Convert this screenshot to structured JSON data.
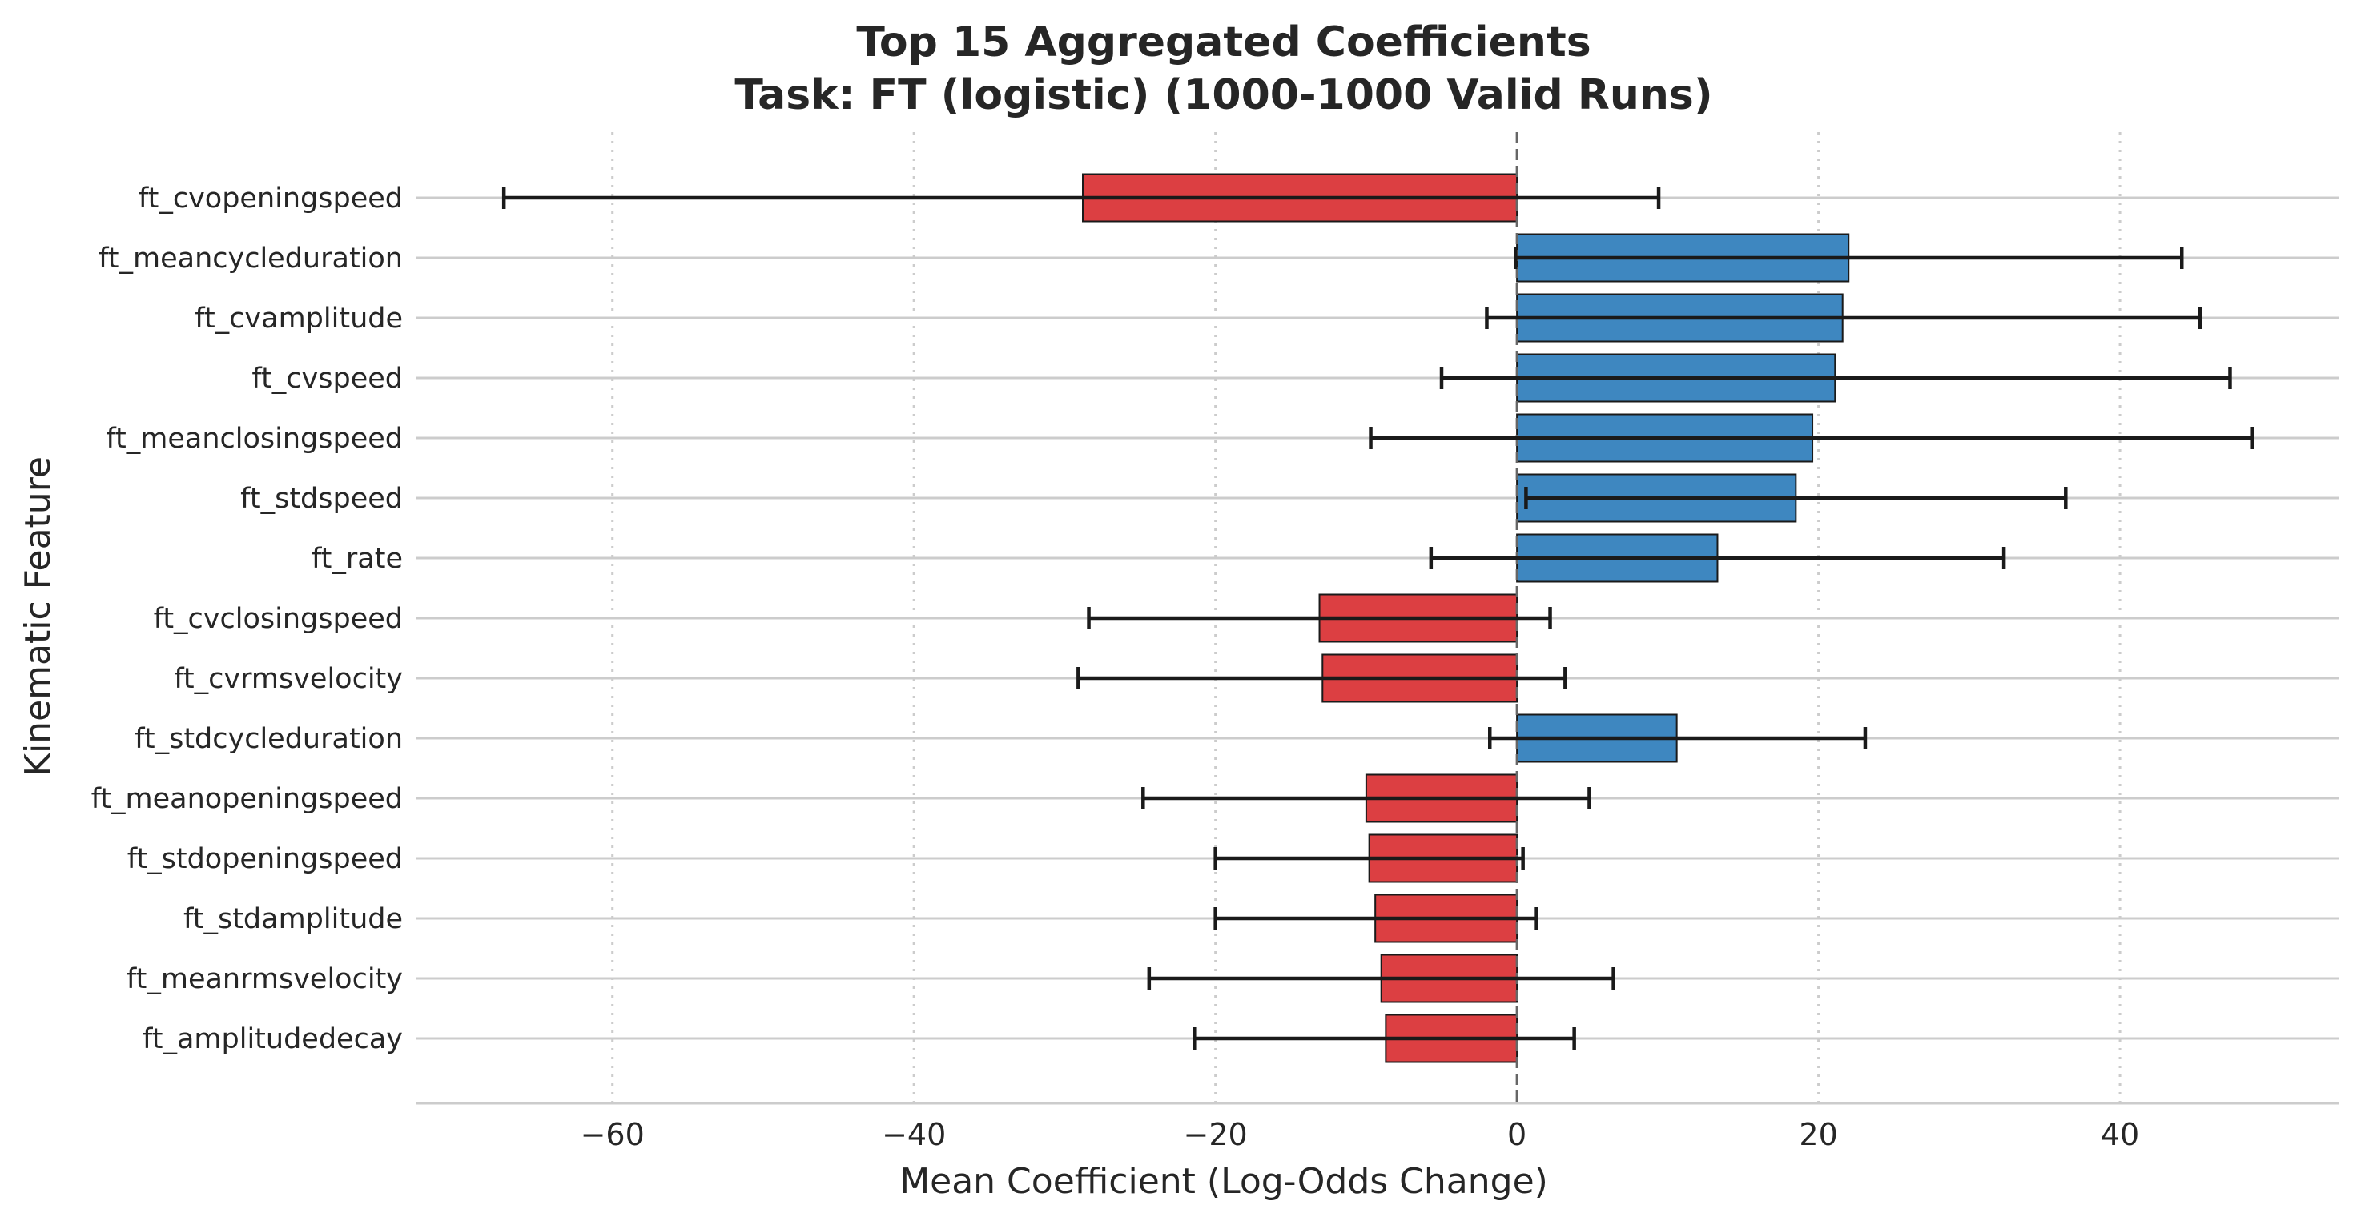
{
  "chart_data": {
    "type": "bar",
    "orientation": "horizontal",
    "title_line1": "Top 15 Aggregated Coefficients",
    "title_line2": "Task: FT (logistic) (1000-1000 Valid Runs)",
    "xlabel": "Mean Coefficient (Log-Odds Change)",
    "ylabel": "Kinematic Feature",
    "xlim": [
      -73,
      54.5
    ],
    "xticks": [
      -60,
      -40,
      -20,
      0,
      20,
      40
    ],
    "xtick_labels": [
      "−60",
      "−40",
      "−20",
      "0",
      "20",
      "40"
    ],
    "grid": "x-dotted, y-solid",
    "zero_line": "dashed",
    "colors": {
      "positive": "#3e87c0",
      "negative": "#dc3f42",
      "errorbar": "#1a1a1a",
      "grid": "#cccccc",
      "zero": "#666666"
    },
    "bars": [
      {
        "feature": "ft_cvopeningspeed",
        "value": -28.8,
        "err_low": -67.2,
        "err_high": 9.4
      },
      {
        "feature": "ft_meancycleduration",
        "value": 22.0,
        "err_low": -0.1,
        "err_high": 44.1
      },
      {
        "feature": "ft_cvamplitude",
        "value": 21.6,
        "err_low": -2.0,
        "err_high": 45.3
      },
      {
        "feature": "ft_cvspeed",
        "value": 21.1,
        "err_low": -5.0,
        "err_high": 47.3
      },
      {
        "feature": "ft_meanclosingspeed",
        "value": 19.6,
        "err_low": -9.7,
        "err_high": 48.8
      },
      {
        "feature": "ft_stdspeed",
        "value": 18.5,
        "err_low": 0.6,
        "err_high": 36.4
      },
      {
        "feature": "ft_rate",
        "value": 13.3,
        "err_low": -5.7,
        "err_high": 32.3
      },
      {
        "feature": "ft_cvclosingspeed",
        "value": -13.1,
        "err_low": -28.4,
        "err_high": 2.2
      },
      {
        "feature": "ft_cvrmsvelocity",
        "value": -12.9,
        "err_low": -29.1,
        "err_high": 3.2
      },
      {
        "feature": "ft_stdcycleduration",
        "value": 10.6,
        "err_low": -1.8,
        "err_high": 23.1
      },
      {
        "feature": "ft_meanopeningspeed",
        "value": -10.0,
        "err_low": -24.8,
        "err_high": 4.8
      },
      {
        "feature": "ft_stdopeningspeed",
        "value": -9.8,
        "err_low": -20.0,
        "err_high": 0.4
      },
      {
        "feature": "ft_stdamplitude",
        "value": -9.4,
        "err_low": -20.0,
        "err_high": 1.3
      },
      {
        "feature": "ft_meanrmsvelocity",
        "value": -9.0,
        "err_low": -24.4,
        "err_high": 6.4
      },
      {
        "feature": "ft_amplitudedecay",
        "value": -8.7,
        "err_low": -21.4,
        "err_high": 3.8
      }
    ]
  }
}
